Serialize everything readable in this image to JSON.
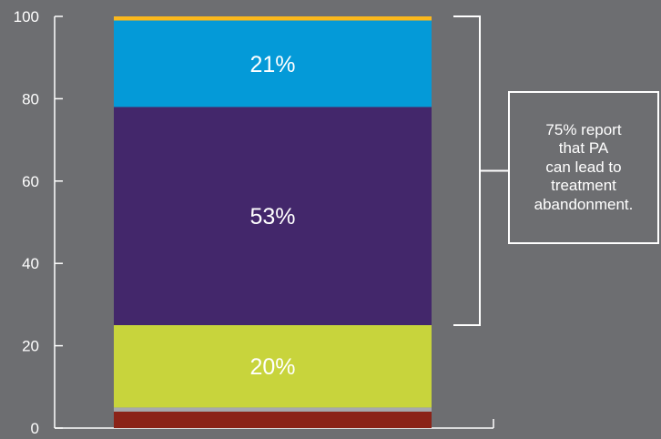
{
  "chart_data": {
    "type": "bar",
    "stacked": true,
    "categories": [
      ""
    ],
    "ylim": [
      0,
      100
    ],
    "yticks": [
      "0",
      "20",
      "40",
      "60",
      "80",
      "100"
    ],
    "grid": false,
    "series": [
      {
        "values": [
          4
        ],
        "label": "",
        "color": "#8b2318"
      },
      {
        "values": [
          1
        ],
        "label": "",
        "color": "#a7a9ac"
      },
      {
        "values": [
          20
        ],
        "label": "20%",
        "color": "#c8d43c"
      },
      {
        "values": [
          53
        ],
        "label": "53%",
        "color": "#43276b"
      },
      {
        "values": [
          21
        ],
        "label": "21%",
        "color": "#049ad8"
      },
      {
        "values": [
          1
        ],
        "label": "",
        "color": "#fbb81c"
      }
    ],
    "callout": {
      "text": "75% report that PA can lead to treatment abandonment.",
      "lines": [
        "75% report",
        "that PA",
        "can lead to",
        "treatment",
        "abandonment."
      ],
      "spans_series": [
        "53%",
        "21%",
        ""
      ]
    }
  },
  "colors": {
    "background": "#6d6e71",
    "axis": "#ffffff",
    "text": "#ffffff"
  }
}
